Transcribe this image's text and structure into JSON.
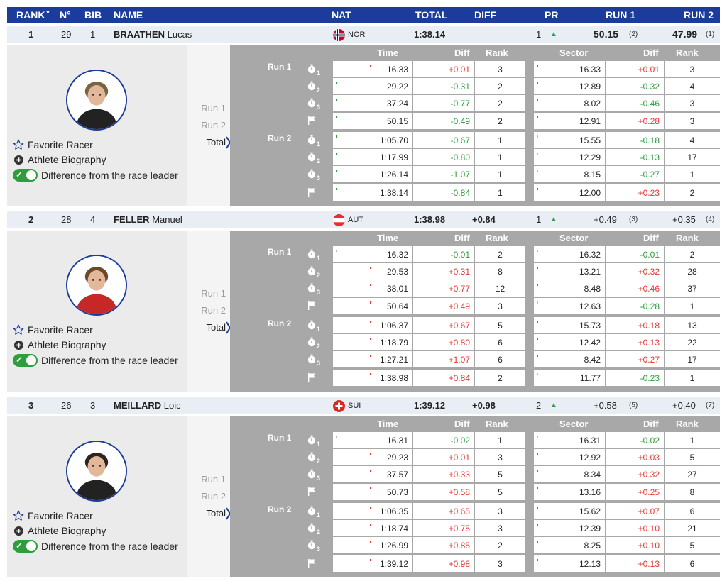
{
  "header": {
    "rank": "RANK",
    "no": "N°",
    "bib": "BIB",
    "name": "NAME",
    "nat": "NAT",
    "total": "TOTAL",
    "diff": "DIFF",
    "pr": "PR",
    "run1": "RUN 1",
    "run2": "RUN 2"
  },
  "grid_headers": {
    "time": "Time",
    "diff": "Diff",
    "rank": "Rank",
    "sector": "Sector",
    "sdiff": "Diff",
    "srank": "Rank"
  },
  "labels": {
    "run1": "Run 1",
    "run2": "Run 2",
    "total": "Total",
    "favorite": "Favorite Racer",
    "biography": "Athlete Biography",
    "difference": "Difference from the race leader"
  },
  "colors": {
    "header_bg": "#1b3c9b",
    "row_bg": "#e9eef5",
    "positive": "#e53935",
    "negative": "#2e9d3e"
  },
  "athletes": [
    {
      "rank": "1",
      "no": "29",
      "bib": "1",
      "surname": "BRAATHEN",
      "firstname": "Lucas",
      "nat": "NOR",
      "flag": "nor",
      "total": "1:38.14",
      "diff": "",
      "pr": "1",
      "run1": "50.15",
      "run1_rank": "(2)",
      "run2": "47.99",
      "run2_rank": "(1)",
      "rows": [
        {
          "time": "16.33",
          "diff": "+0.01",
          "rank": "3",
          "sector": "16.33",
          "sdiff": "+0.01",
          "srank": "3"
        },
        {
          "time": "29.22",
          "diff": "-0.31",
          "rank": "2",
          "sector": "12.89",
          "sdiff": "-0.32",
          "srank": "4"
        },
        {
          "time": "37.24",
          "diff": "-0.77",
          "rank": "2",
          "sector": "8.02",
          "sdiff": "-0.46",
          "srank": "3"
        },
        {
          "time": "50.15",
          "diff": "-0.49",
          "rank": "2",
          "sector": "12.91",
          "sdiff": "+0.28",
          "srank": "3"
        },
        {
          "time": "1:05.70",
          "diff": "-0.67",
          "rank": "1",
          "sector": "15.55",
          "sdiff": "-0.18",
          "srank": "4"
        },
        {
          "time": "1:17.99",
          "diff": "-0.80",
          "rank": "1",
          "sector": "12.29",
          "sdiff": "-0.13",
          "srank": "17"
        },
        {
          "time": "1:26.14",
          "diff": "-1.07",
          "rank": "1",
          "sector": "8.15",
          "sdiff": "-0.27",
          "srank": "1"
        },
        {
          "time": "1:38.14",
          "diff": "-0.84",
          "rank": "1",
          "sector": "12.00",
          "sdiff": "+0.23",
          "srank": "2"
        }
      ]
    },
    {
      "rank": "2",
      "no": "28",
      "bib": "4",
      "surname": "FELLER",
      "firstname": "Manuel",
      "nat": "AUT",
      "flag": "aut",
      "total": "1:38.98",
      "diff": "+0.84",
      "pr": "1",
      "run1": "+0.49",
      "run1_rank": "(3)",
      "run2": "+0.35",
      "run2_rank": "(4)",
      "rows": [
        {
          "time": "16.32",
          "diff": "-0.01",
          "rank": "2",
          "sector": "16.32",
          "sdiff": "-0.01",
          "srank": "2"
        },
        {
          "time": "29.53",
          "diff": "+0.31",
          "rank": "8",
          "sector": "13.21",
          "sdiff": "+0.32",
          "srank": "28"
        },
        {
          "time": "38.01",
          "diff": "+0.77",
          "rank": "12",
          "sector": "8.48",
          "sdiff": "+0.46",
          "srank": "37"
        },
        {
          "time": "50.64",
          "diff": "+0.49",
          "rank": "3",
          "sector": "12.63",
          "sdiff": "-0.28",
          "srank": "1"
        },
        {
          "time": "1:06.37",
          "diff": "+0.67",
          "rank": "5",
          "sector": "15.73",
          "sdiff": "+0.18",
          "srank": "13"
        },
        {
          "time": "1:18.79",
          "diff": "+0.80",
          "rank": "6",
          "sector": "12.42",
          "sdiff": "+0.13",
          "srank": "22"
        },
        {
          "time": "1:27.21",
          "diff": "+1.07",
          "rank": "6",
          "sector": "8.42",
          "sdiff": "+0.27",
          "srank": "17"
        },
        {
          "time": "1:38.98",
          "diff": "+0.84",
          "rank": "2",
          "sector": "11.77",
          "sdiff": "-0.23",
          "srank": "1"
        }
      ]
    },
    {
      "rank": "3",
      "no": "26",
      "bib": "3",
      "surname": "MEILLARD",
      "firstname": "Loic",
      "nat": "SUI",
      "flag": "sui",
      "total": "1:39.12",
      "diff": "+0.98",
      "pr": "2",
      "run1": "+0.58",
      "run1_rank": "(5)",
      "run2": "+0.40",
      "run2_rank": "(7)",
      "rows": [
        {
          "time": "16.31",
          "diff": "-0.02",
          "rank": "1",
          "sector": "16.31",
          "sdiff": "-0.02",
          "srank": "1"
        },
        {
          "time": "29.23",
          "diff": "+0.01",
          "rank": "3",
          "sector": "12.92",
          "sdiff": "+0.03",
          "srank": "5"
        },
        {
          "time": "37.57",
          "diff": "+0.33",
          "rank": "5",
          "sector": "8.34",
          "sdiff": "+0.32",
          "srank": "27"
        },
        {
          "time": "50.73",
          "diff": "+0.58",
          "rank": "5",
          "sector": "13.16",
          "sdiff": "+0.25",
          "srank": "8"
        },
        {
          "time": "1:06.35",
          "diff": "+0.65",
          "rank": "3",
          "sector": "15.62",
          "sdiff": "+0.07",
          "srank": "6"
        },
        {
          "time": "1:18.74",
          "diff": "+0.75",
          "rank": "3",
          "sector": "12.39",
          "sdiff": "+0.10",
          "srank": "21"
        },
        {
          "time": "1:26.99",
          "diff": "+0.85",
          "rank": "2",
          "sector": "8.25",
          "sdiff": "+0.10",
          "srank": "5"
        },
        {
          "time": "1:39.12",
          "diff": "+0.98",
          "rank": "3",
          "sector": "12.13",
          "sdiff": "+0.13",
          "srank": "6"
        }
      ]
    }
  ]
}
